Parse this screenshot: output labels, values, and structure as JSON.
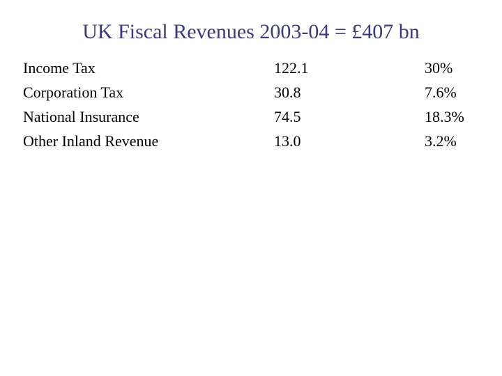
{
  "slide": {
    "title": "UK Fiscal Revenues 2003-04 = £407 bn"
  },
  "table": {
    "rows": [
      {
        "name": "Income Tax",
        "value": "122.1",
        "share": "30%"
      },
      {
        "name": "Corporation Tax",
        "value": "30.8",
        "share": "7.6%"
      },
      {
        "name": "National Insurance",
        "value": "74.5",
        "share": "18.3%"
      },
      {
        "name": "Other Inland Revenue",
        "value": "13.0",
        "share": "3.2%"
      }
    ]
  },
  "colors": {
    "title": "#3c3a7a",
    "text": "#000000",
    "background": "#ffffff"
  }
}
